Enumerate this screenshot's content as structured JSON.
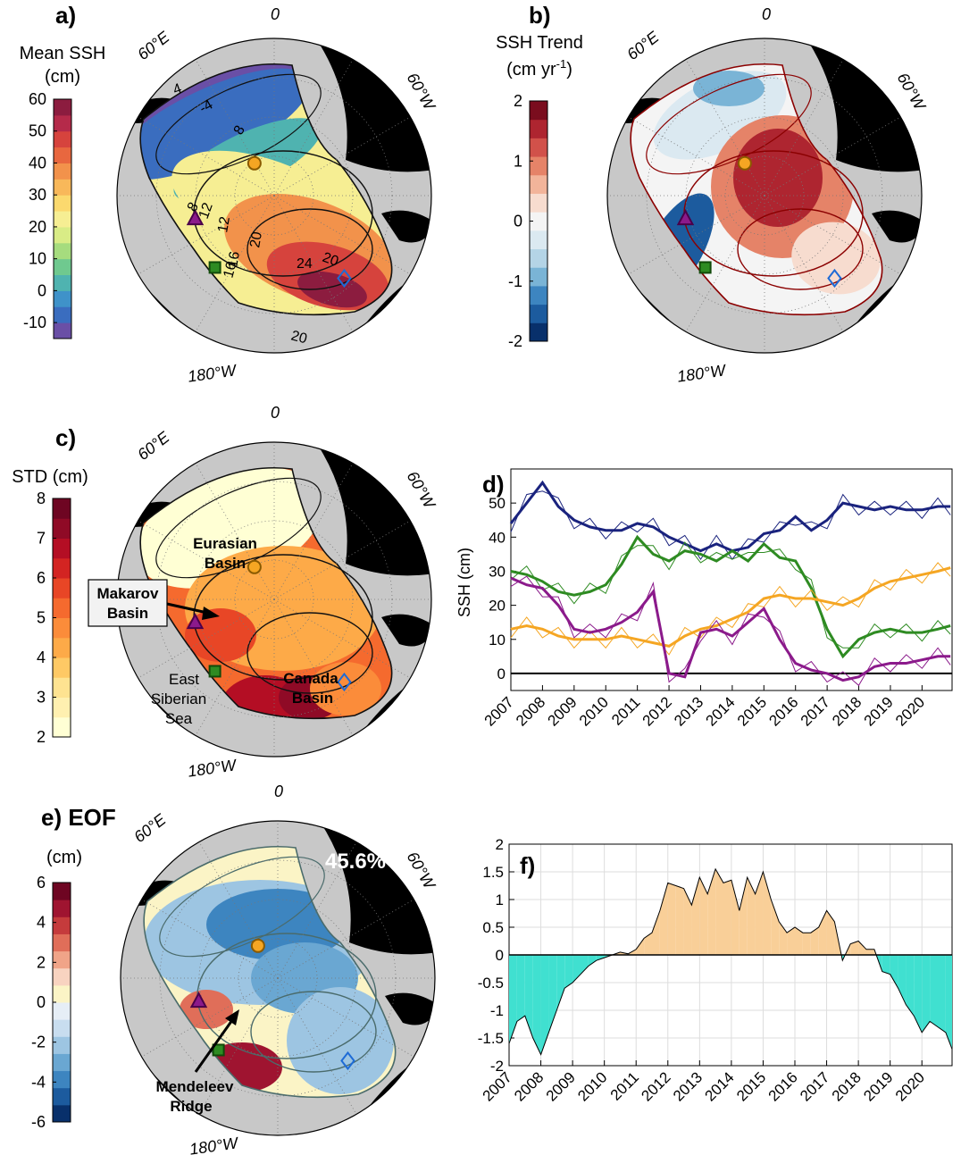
{
  "panels": {
    "a": {
      "label": "a)",
      "colorbar": {
        "title_lines": [
          "Mean SSH",
          "(cm)"
        ],
        "ticks": [
          "60",
          "50",
          "40",
          "30",
          "20",
          "10",
          "0",
          "-10"
        ],
        "min": -15,
        "max": 60,
        "colors": [
          "#6a4fa6",
          "#3a6dbf",
          "#3f92c9",
          "#4fb3b0",
          "#6fc98f",
          "#a6dc7e",
          "#d9ec86",
          "#f6ee93",
          "#fbd96e",
          "#f8b85a",
          "#f2924b",
          "#e8673f",
          "#d6433d",
          "#b52a4a",
          "#8c1c3f"
        ]
      },
      "map_labels": {
        "top": "0",
        "left": "60°E",
        "right": "60°W",
        "bottom": "180°W"
      },
      "contour_labels": [
        "-4",
        "4",
        "8",
        "12",
        "16",
        "20",
        "24",
        "20",
        "20",
        "8",
        "12",
        "16"
      ]
    },
    "b": {
      "label": "b)",
      "colorbar": {
        "title_lines": [
          "SSH Trend",
          "(cm yr-1)"
        ],
        "ticks": [
          "2",
          "1",
          "0",
          "-1",
          "-2"
        ],
        "min": -2,
        "max": 2,
        "colors": [
          "#08306b",
          "#1c5b9e",
          "#3d85c0",
          "#7ab4d6",
          "#b4d4e6",
          "#dbe9f1",
          "#f4f4f4",
          "#f7dccf",
          "#f2b49a",
          "#e58368",
          "#d1514a",
          "#ae2530",
          "#7a0d1e"
        ]
      },
      "map_labels": {
        "top": "0",
        "left": "60°E",
        "right": "60°W",
        "bottom": "180°W"
      }
    },
    "c": {
      "label": "c)",
      "colorbar": {
        "title_lines": [
          "STD (cm)"
        ],
        "ticks": [
          "8",
          "7",
          "6",
          "5",
          "4",
          "3",
          "2"
        ],
        "min": 2,
        "max": 8,
        "colors": [
          "#ffffd4",
          "#fff0b0",
          "#fee391",
          "#fec965",
          "#fdaa48",
          "#fb8c3a",
          "#f56a2e",
          "#e84626",
          "#d32422",
          "#b40e24",
          "#8f0a26",
          "#6e0522"
        ]
      },
      "map_labels": {
        "top": "0",
        "left": "60°E",
        "right": "60°W",
        "bottom": "180°W"
      },
      "region_labels": {
        "eurasian": [
          "Eurasian",
          "Basin"
        ],
        "makarov": [
          "Makarov",
          "Basin"
        ],
        "canada": [
          "Canada",
          "Basin"
        ],
        "siberian": [
          "East",
          "Siberian",
          "Sea"
        ]
      }
    },
    "e": {
      "label": "e) EOF",
      "colorbar": {
        "title_lines": [
          "(cm)"
        ],
        "ticks": [
          "6",
          "4",
          "2",
          "0",
          "-2",
          "-4",
          "-6"
        ],
        "min": -6,
        "max": 6,
        "colors": [
          "#08306b",
          "#1c5b9e",
          "#3d85c0",
          "#6aa7d2",
          "#9dc5e2",
          "#c8ddef",
          "#e6eef6",
          "#fbf4c6",
          "#f8d3c0",
          "#f0a488",
          "#e06e59",
          "#c53b3c",
          "#9f1430",
          "#6e0522"
        ]
      },
      "map_labels": {
        "top": "0",
        "left": "60°E",
        "right": "60°W",
        "bottom": "180°W"
      },
      "variance": "45.6%",
      "annotation": [
        "Mendeleev",
        "Ridge"
      ]
    },
    "d": {
      "label": "d)"
    },
    "f": {
      "label": "f)"
    }
  },
  "chart_data": [
    {
      "type": "line",
      "panel": "d",
      "title": "",
      "xlabel": "",
      "ylabel": "SSH (cm)",
      "x": [
        2007.0,
        2007.5,
        2008.0,
        2008.5,
        2009.0,
        2009.5,
        2010.0,
        2010.5,
        2011.0,
        2011.5,
        2012.0,
        2012.5,
        2013.0,
        2013.5,
        2014.0,
        2014.5,
        2015.0,
        2015.5,
        2016.0,
        2016.5,
        2017.0,
        2017.5,
        2018.0,
        2018.5,
        2019.0,
        2019.5,
        2020.0,
        2020.5,
        2020.9
      ],
      "xlim": [
        2007,
        2020.95
      ],
      "ylim": [
        -5,
        60
      ],
      "xticks": [
        "2007",
        "2008",
        "2009",
        "2010",
        "2011",
        "2012",
        "2013",
        "2014",
        "2015",
        "2016",
        "2017",
        "2018",
        "2019",
        "2020"
      ],
      "yticks": [
        0,
        10,
        20,
        30,
        40,
        50
      ],
      "series": [
        {
          "color": "#1a237e",
          "values": [
            44,
            50,
            56,
            49,
            45,
            43,
            42,
            42,
            44,
            43,
            40,
            38,
            36,
            38,
            36,
            37,
            41,
            42,
            46,
            42,
            45,
            50,
            49,
            48,
            49,
            48,
            48,
            49,
            49
          ]
        },
        {
          "color": "#2e8b22",
          "values": [
            30,
            29,
            27,
            24,
            23,
            24,
            26,
            32,
            40,
            35,
            33,
            36,
            35,
            33,
            36,
            33,
            38,
            34,
            33,
            25,
            13,
            5,
            10,
            12,
            13,
            12,
            12,
            13,
            14
          ]
        },
        {
          "color": "#f5a623",
          "values": [
            13,
            14,
            13,
            11,
            10,
            10,
            10,
            11,
            10,
            9,
            8,
            11,
            13,
            14,
            16,
            18,
            22,
            23,
            22,
            22,
            21,
            20,
            22,
            25,
            27,
            28,
            29,
            30,
            31
          ]
        },
        {
          "color": "#8b1a8b",
          "values": [
            28,
            26,
            25,
            20,
            13,
            12,
            13,
            15,
            18,
            24,
            0,
            -1,
            12,
            13,
            11,
            15,
            19,
            10,
            3,
            1,
            0,
            -2,
            -1,
            2,
            3,
            3,
            4,
            5,
            5
          ]
        }
      ]
    },
    {
      "type": "area",
      "panel": "f",
      "title": "",
      "x": [
        2007.0,
        2007.25,
        2007.5,
        2007.75,
        2008.0,
        2008.25,
        2008.5,
        2008.75,
        2009.0,
        2009.25,
        2009.5,
        2009.75,
        2010.0,
        2010.25,
        2010.5,
        2010.75,
        2011.0,
        2011.25,
        2011.5,
        2011.75,
        2012.0,
        2012.25,
        2012.5,
        2012.75,
        2013.0,
        2013.25,
        2013.5,
        2013.75,
        2014.0,
        2014.25,
        2014.5,
        2014.75,
        2015.0,
        2015.25,
        2015.5,
        2015.75,
        2016.0,
        2016.25,
        2016.5,
        2016.75,
        2017.0,
        2017.25,
        2017.5,
        2017.75,
        2018.0,
        2018.25,
        2018.5,
        2018.75,
        2019.0,
        2019.25,
        2019.5,
        2019.75,
        2020.0,
        2020.25,
        2020.5,
        2020.75,
        2020.95
      ],
      "values": [
        -1.6,
        -1.2,
        -1.1,
        -1.5,
        -1.8,
        -1.4,
        -1.0,
        -0.6,
        -0.5,
        -0.35,
        -0.2,
        -0.1,
        -0.05,
        0.0,
        0.05,
        0.02,
        0.1,
        0.3,
        0.4,
        0.8,
        1.3,
        1.25,
        1.2,
        0.9,
        1.4,
        1.1,
        1.55,
        1.3,
        1.35,
        0.8,
        1.4,
        1.1,
        1.5,
        1.0,
        0.6,
        0.4,
        0.5,
        0.4,
        0.4,
        0.5,
        0.8,
        0.6,
        -0.1,
        0.2,
        0.25,
        0.1,
        0.1,
        -0.3,
        -0.35,
        -0.6,
        -0.9,
        -1.1,
        -1.4,
        -1.2,
        -1.3,
        -1.4,
        -1.7
      ],
      "xlim": [
        2007,
        2020.95
      ],
      "ylim": [
        -2,
        2
      ],
      "xticks": [
        "2007",
        "2008",
        "2009",
        "2010",
        "2011",
        "2012",
        "2013",
        "2014",
        "2015",
        "2016",
        "2017",
        "2018",
        "2019",
        "2020"
      ],
      "yticks": [
        "2",
        "1.5",
        "1",
        "0.5",
        "0",
        "-0.5",
        "-1",
        "-1.5",
        "-2"
      ],
      "positive_color": "#f9cf98",
      "negative_color": "#40e0d0"
    }
  ]
}
